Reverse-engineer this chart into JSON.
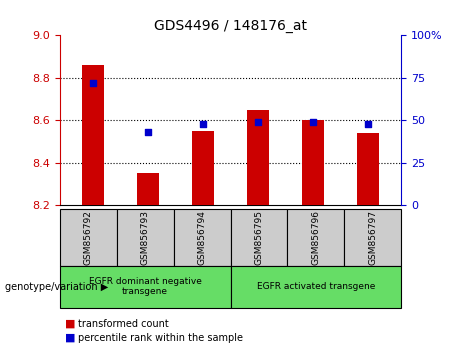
{
  "title": "GDS4496 / 148176_at",
  "categories": [
    "GSM856792",
    "GSM856793",
    "GSM856794",
    "GSM856795",
    "GSM856796",
    "GSM856797"
  ],
  "bar_values": [
    8.86,
    8.35,
    8.55,
    8.65,
    8.6,
    8.54
  ],
  "scatter_values": [
    72,
    43,
    48,
    49,
    49,
    48
  ],
  "ylim_left": [
    8.2,
    9.0
  ],
  "ylim_right": [
    0,
    100
  ],
  "yticks_left": [
    8.2,
    8.4,
    8.6,
    8.8,
    9.0
  ],
  "yticks_right": [
    0,
    25,
    50,
    75,
    100
  ],
  "ytick_labels_right": [
    "0",
    "25",
    "50",
    "75",
    "100%"
  ],
  "bar_color": "#cc0000",
  "scatter_color": "#0000cc",
  "group1_label": "EGFR dominant negative\ntransgene",
  "group2_label": "EGFR activated transgene",
  "group1_indices": [
    0,
    1,
    2
  ],
  "group2_indices": [
    3,
    4,
    5
  ],
  "legend_bar_label": "transformed count",
  "legend_scatter_label": "percentile rank within the sample",
  "xlabel_area_label": "genotype/variation",
  "group_bg_color": "#66dd66",
  "tick_area_bg": "#cccccc",
  "bar_bottom": 8.2,
  "bar_width": 0.4,
  "grid_yvals": [
    8.4,
    8.6,
    8.8
  ],
  "title_fontsize": 10,
  "tick_fontsize": 8,
  "label_fontsize": 7
}
